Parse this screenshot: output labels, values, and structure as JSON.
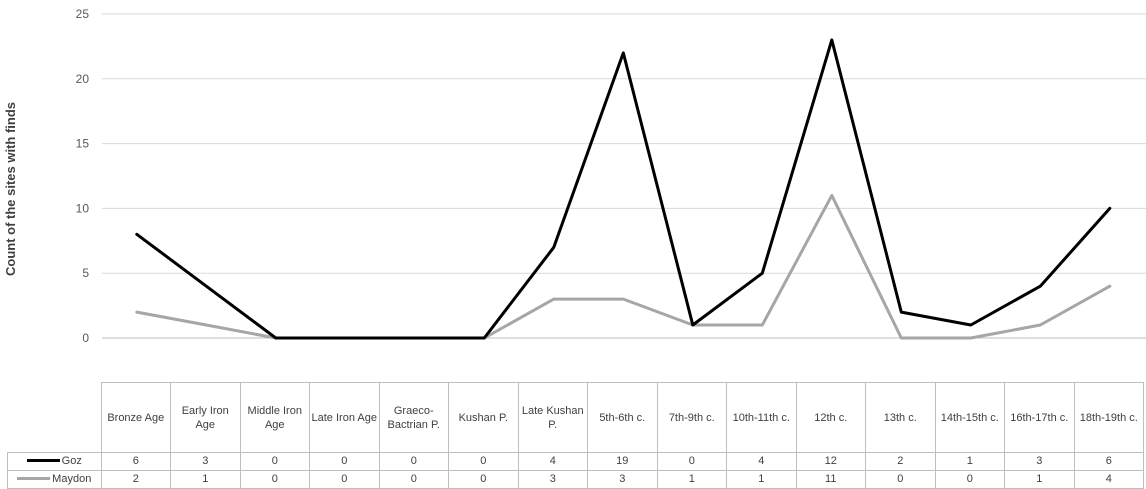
{
  "chart_data": {
    "type": "line",
    "title": "",
    "ylabel": "Count of the sites with finds",
    "ylim": [
      0,
      25
    ],
    "yticks": [
      0,
      5,
      10,
      15,
      20,
      25
    ],
    "grid": true,
    "legend_placement": "data-table",
    "categories": [
      "Bronze Age",
      "Early Iron Age",
      "Middle Iron Age",
      "Late Iron Age",
      "Graeco-Bactrian P.",
      "Kushan P.",
      "Late Kushan P.",
      "5th-6th c.",
      "7th-9th c.",
      "10th-11th c.",
      "12th c.",
      "13th c.",
      "14th-15th c.",
      "16th-17th c.",
      "18th-19th c."
    ],
    "series": [
      {
        "name": "Goz",
        "color": "#000000",
        "table_values": [
          6,
          3,
          0,
          0,
          0,
          0,
          4,
          19,
          0,
          4,
          12,
          2,
          1,
          3,
          6
        ],
        "plotted_values": [
          8,
          4,
          0,
          0,
          0,
          0,
          7,
          22,
          1,
          5,
          23,
          2,
          1,
          4,
          10
        ]
      },
      {
        "name": "Maydon",
        "color": "#a6a6a6",
        "table_values": [
          2,
          1,
          0,
          0,
          0,
          0,
          3,
          3,
          1,
          1,
          11,
          0,
          0,
          1,
          4
        ],
        "plotted_values": [
          2,
          1,
          0,
          0,
          0,
          0,
          3,
          3,
          1,
          1,
          11,
          0,
          0,
          1,
          4
        ]
      }
    ]
  }
}
